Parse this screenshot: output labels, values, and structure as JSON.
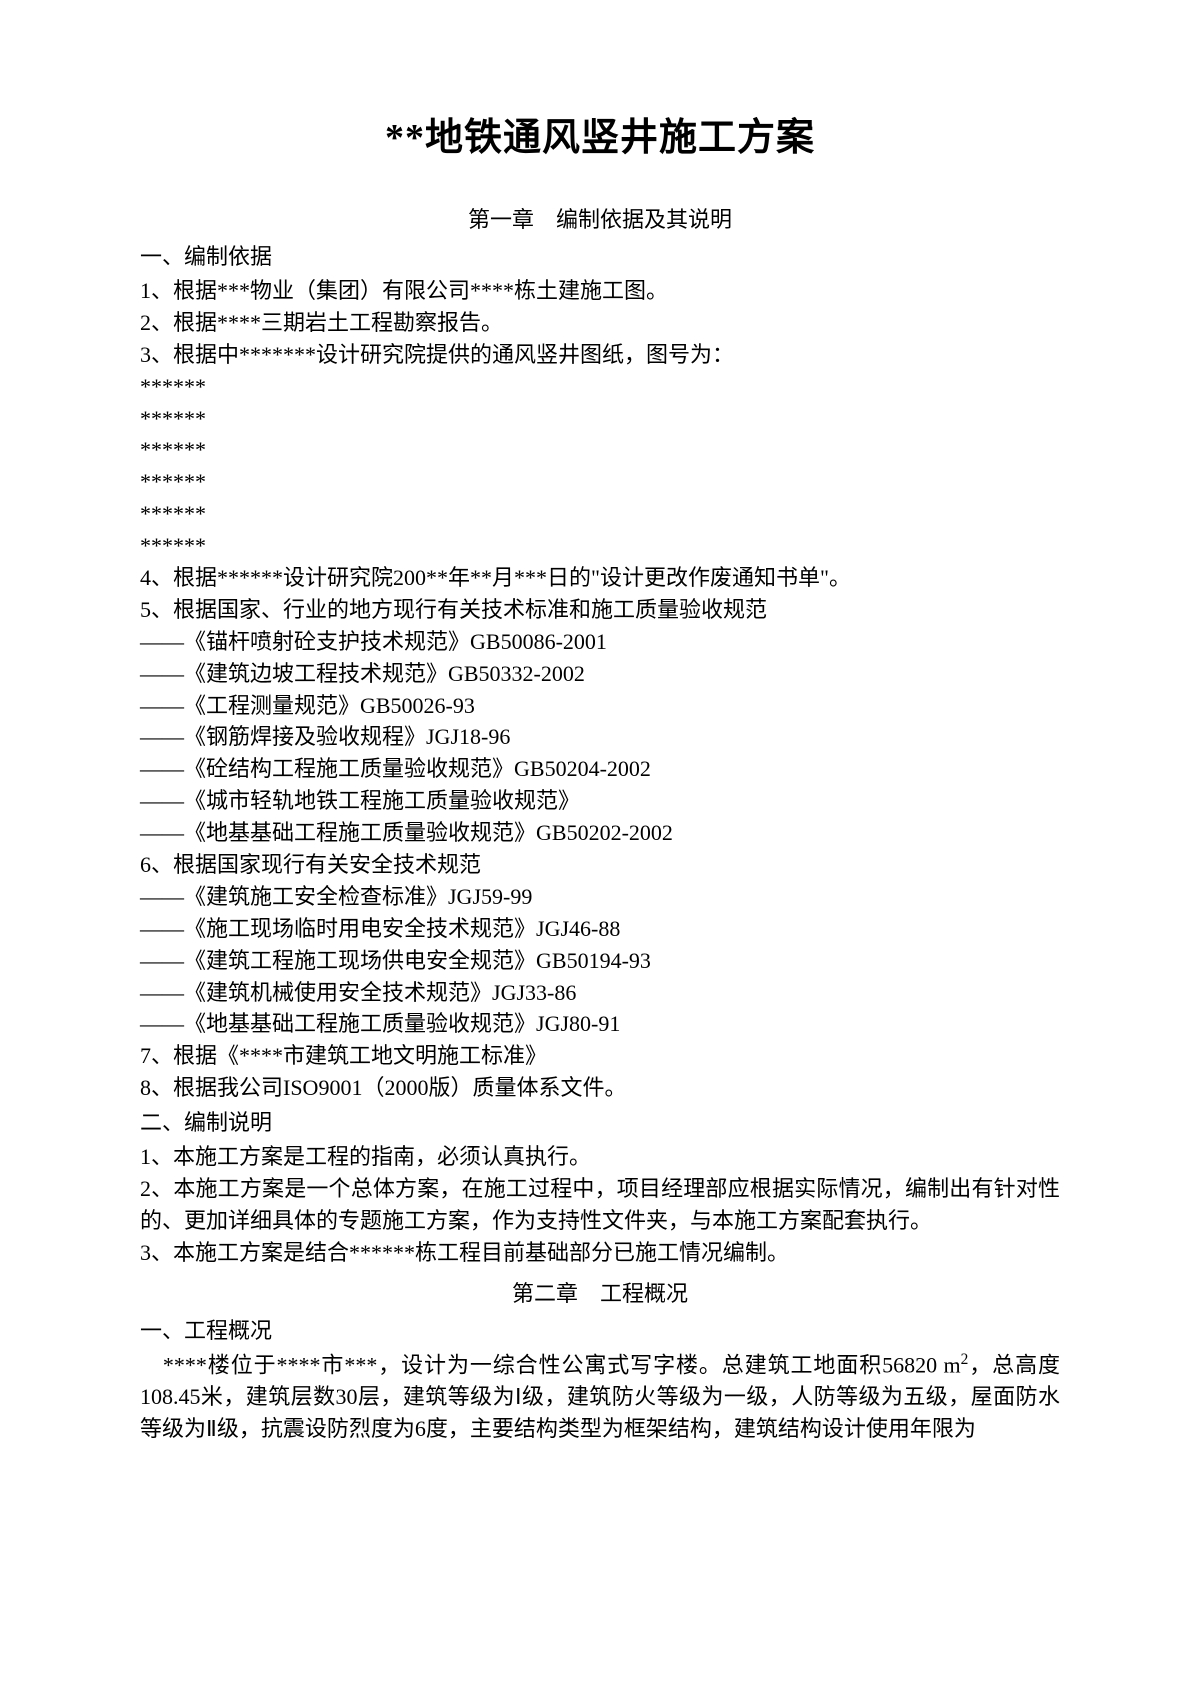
{
  "title": "**地铁通风竖井施工方案",
  "chapter1": {
    "heading": "第一章　编制依据及其说明",
    "section1": {
      "heading": "一、编制依据",
      "item1": "1、根据***物业（集团）有限公司****栋土建施工图。",
      "item2": "2、根据****三期岩土工程勘察报告。",
      "item3": "3、根据中*******设计研究院提供的通风竖井图纸，图号为：",
      "stars": [
        "******",
        "******",
        "******",
        "******",
        "******",
        "******"
      ],
      "item4": "4、根据******设计研究院200**年**月***日的\"设计更改作废通知书单\"。",
      "item5": "5、根据国家、行业的地方现行有关技术标准和施工质量验收规范",
      "item5_subs": [
        "——《锚杆喷射砼支护技术规范》GB50086-2001",
        "——《建筑边坡工程技术规范》GB50332-2002",
        "——《工程测量规范》GB50026-93",
        "——《钢筋焊接及验收规程》JGJ18-96",
        "——《砼结构工程施工质量验收规范》GB50204-2002",
        "——《城市轻轨地铁工程施工质量验收规范》",
        "——《地基基础工程施工质量验收规范》GB50202-2002"
      ],
      "item6": "6、根据国家现行有关安全技术规范",
      "item6_subs": [
        "——《建筑施工安全检查标准》JGJ59-99",
        "——《施工现场临时用电安全技术规范》JGJ46-88",
        "——《建筑工程施工现场供电安全规范》GB50194-93",
        "——《建筑机械使用安全技术规范》JGJ33-86",
        "——《地基基础工程施工质量验收规范》JGJ80-91"
      ],
      "item7": "7、根据《****市建筑工地文明施工标准》",
      "item8": "8、根据我公司ISO9001（2000版）质量体系文件。"
    },
    "section2": {
      "heading": "二、编制说明",
      "item1": "1、本施工方案是工程的指南，必须认真执行。",
      "item2": "2、本施工方案是一个总体方案，在施工过程中，项目经理部应根据实际情况，编制出有针对性的、更加详细具体的专题施工方案，作为支持性文件夹，与本施工方案配套执行。",
      "item3": "3、本施工方案是结合******栋工程目前基础部分已施工情况编制。"
    }
  },
  "chapter2": {
    "heading": "第二章　工程概况",
    "section1": {
      "heading": "一、工程概况",
      "para1_pre": "　****楼位于****市***，设计为一综合性公寓式写字楼。总建筑工地面积56820 m",
      "para1_post": "，总高度108.45米，建筑层数30层，建筑等级为Ⅰ级，建筑防火等级为一级，人防等级为五级，屋面防水等级为Ⅱ级，抗震设防烈度为6度，主要结构类型为框架结构，建筑结构设计使用年限为"
    }
  },
  "style": {
    "text_color": "#000000",
    "bg_color": "#ffffff",
    "title_fontsize": 38,
    "body_fontsize": 22,
    "line_height": 1.45
  }
}
